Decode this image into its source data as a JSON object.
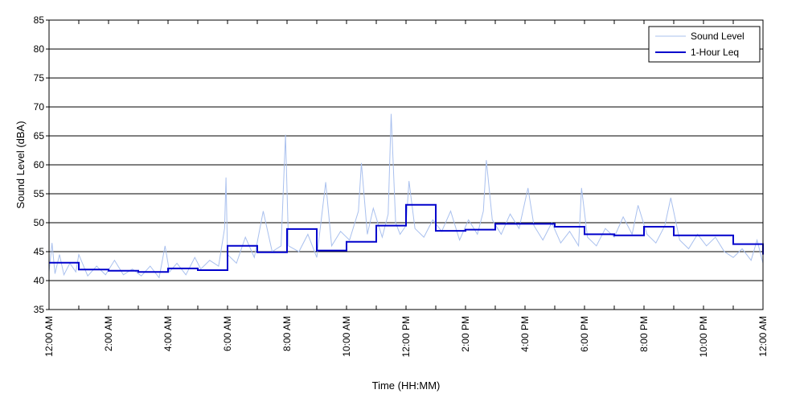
{
  "chart_data": {
    "type": "line",
    "xlabel": "Time (HH:MM)",
    "ylabel": "Sound Level (dBA)",
    "ylim": [
      35,
      85
    ],
    "xlim_hours": [
      0,
      24
    ],
    "y_ticks": [
      35,
      40,
      45,
      50,
      55,
      60,
      65,
      70,
      75,
      80,
      85
    ],
    "x_tick_hours": [
      0,
      2,
      4,
      6,
      8,
      10,
      12,
      14,
      16,
      18,
      20,
      22,
      24
    ],
    "x_tick_labels": [
      "12:00 AM",
      "2:00 AM",
      "4:00 AM",
      "6:00 AM",
      "8:00 AM",
      "10:00 AM",
      "12:00 PM",
      "2:00 PM",
      "4:00 PM",
      "6:00 PM",
      "8:00 PM",
      "10:00 PM",
      "12:00 AM"
    ],
    "grid": "horizontal",
    "legend_position": "top-right",
    "series": [
      {
        "name": "Sound Level",
        "color": "#a9c0ee",
        "style": "thin-line",
        "approx_points": [
          [
            0.0,
            41.5
          ],
          [
            0.1,
            46.5
          ],
          [
            0.2,
            41.2
          ],
          [
            0.35,
            44.5
          ],
          [
            0.5,
            41.0
          ],
          [
            0.7,
            43.0
          ],
          [
            0.9,
            41.5
          ],
          [
            1.0,
            44.5
          ],
          [
            1.3,
            40.8
          ],
          [
            1.6,
            42.5
          ],
          [
            1.9,
            41.0
          ],
          [
            2.2,
            43.5
          ],
          [
            2.5,
            41.0
          ],
          [
            2.8,
            42.0
          ],
          [
            3.1,
            40.8
          ],
          [
            3.4,
            42.5
          ],
          [
            3.7,
            40.5
          ],
          [
            3.9,
            46.0
          ],
          [
            4.05,
            41.5
          ],
          [
            4.3,
            43.0
          ],
          [
            4.6,
            41.0
          ],
          [
            4.9,
            44.0
          ],
          [
            5.1,
            42.0
          ],
          [
            5.4,
            43.5
          ],
          [
            5.7,
            42.5
          ],
          [
            5.9,
            49.0
          ],
          [
            5.95,
            57.8
          ],
          [
            6.0,
            44.5
          ],
          [
            6.3,
            43.0
          ],
          [
            6.6,
            47.5
          ],
          [
            6.9,
            44.0
          ],
          [
            7.2,
            52.0
          ],
          [
            7.5,
            45.0
          ],
          [
            7.8,
            46.0
          ],
          [
            7.95,
            65.2
          ],
          [
            8.05,
            46.0
          ],
          [
            8.4,
            45.0
          ],
          [
            8.7,
            48.0
          ],
          [
            9.0,
            44.0
          ],
          [
            9.3,
            57.0
          ],
          [
            9.5,
            46.0
          ],
          [
            9.8,
            48.5
          ],
          [
            10.1,
            47.0
          ],
          [
            10.4,
            52.0
          ],
          [
            10.5,
            60.3
          ],
          [
            10.7,
            48.0
          ],
          [
            10.9,
            52.5
          ],
          [
            11.2,
            47.5
          ],
          [
            11.4,
            51.5
          ],
          [
            11.5,
            68.8
          ],
          [
            11.65,
            50.0
          ],
          [
            11.8,
            48.0
          ],
          [
            12.0,
            49.5
          ],
          [
            12.1,
            57.2
          ],
          [
            12.3,
            49.0
          ],
          [
            12.6,
            47.5
          ],
          [
            12.9,
            50.5
          ],
          [
            13.2,
            48.5
          ],
          [
            13.5,
            52.0
          ],
          [
            13.8,
            47.0
          ],
          [
            14.1,
            50.5
          ],
          [
            14.4,
            48.0
          ],
          [
            14.6,
            52.0
          ],
          [
            14.7,
            60.8
          ],
          [
            14.9,
            50.5
          ],
          [
            15.2,
            48.0
          ],
          [
            15.5,
            51.5
          ],
          [
            15.8,
            49.0
          ],
          [
            16.1,
            56.0
          ],
          [
            16.3,
            49.5
          ],
          [
            16.6,
            47.0
          ],
          [
            16.9,
            50.0
          ],
          [
            17.2,
            46.5
          ],
          [
            17.5,
            48.5
          ],
          [
            17.8,
            46.0
          ],
          [
            17.9,
            56.0
          ],
          [
            18.1,
            47.5
          ],
          [
            18.4,
            46.0
          ],
          [
            18.7,
            49.0
          ],
          [
            19.0,
            47.5
          ],
          [
            19.3,
            51.0
          ],
          [
            19.6,
            48.0
          ],
          [
            19.8,
            53.0
          ],
          [
            20.1,
            48.0
          ],
          [
            20.4,
            46.5
          ],
          [
            20.7,
            49.5
          ],
          [
            20.9,
            54.3
          ],
          [
            21.2,
            47.0
          ],
          [
            21.5,
            45.5
          ],
          [
            21.8,
            48.0
          ],
          [
            22.1,
            46.0
          ],
          [
            22.4,
            47.5
          ],
          [
            22.7,
            45.0
          ],
          [
            23.0,
            44.0
          ],
          [
            23.3,
            45.5
          ],
          [
            23.6,
            43.5
          ],
          [
            23.8,
            47.0
          ],
          [
            24.0,
            43.0
          ]
        ]
      },
      {
        "name": "1-Hour Leq",
        "color": "#0000cc",
        "style": "step",
        "hourly_leq": [
          43.1,
          41.9,
          41.7,
          41.5,
          42.1,
          41.8,
          46.0,
          44.9,
          48.9,
          45.2,
          46.7,
          49.5,
          53.1,
          48.6,
          48.8,
          49.8,
          49.8,
          49.3,
          48.0,
          47.8,
          49.3,
          47.8,
          47.8,
          46.3,
          44.5
        ]
      }
    ]
  }
}
